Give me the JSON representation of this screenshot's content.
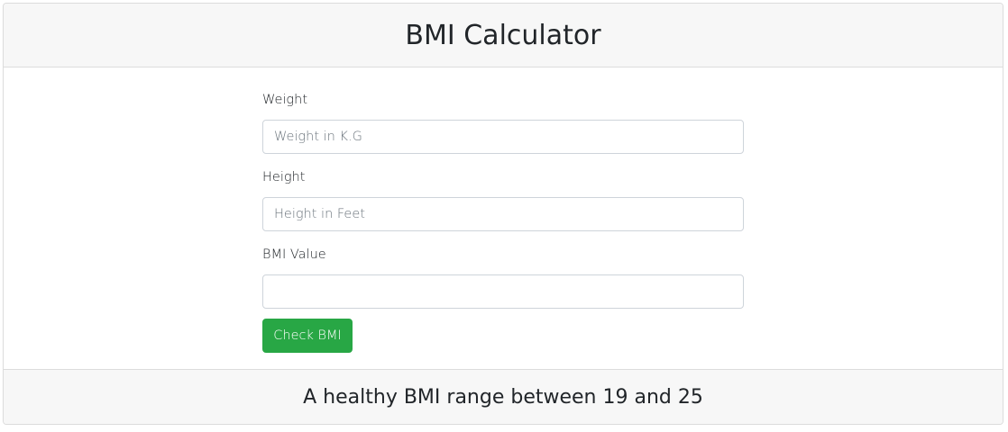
{
  "header": {
    "title": "BMI Calculator"
  },
  "form": {
    "weight": {
      "label": "Weight",
      "placeholder": "Weight in K.G",
      "value": ""
    },
    "height": {
      "label": "Height",
      "placeholder": "Height in Feet",
      "value": ""
    },
    "bmi": {
      "label": "BMI Value",
      "placeholder": "",
      "value": ""
    },
    "submit_label": "Check BMI"
  },
  "footer": {
    "note": "A healthy BMI range between 19 and 25"
  },
  "colors": {
    "accent": "#28a745",
    "header_bg": "#f7f7f7",
    "border": "#dcdcdc"
  }
}
